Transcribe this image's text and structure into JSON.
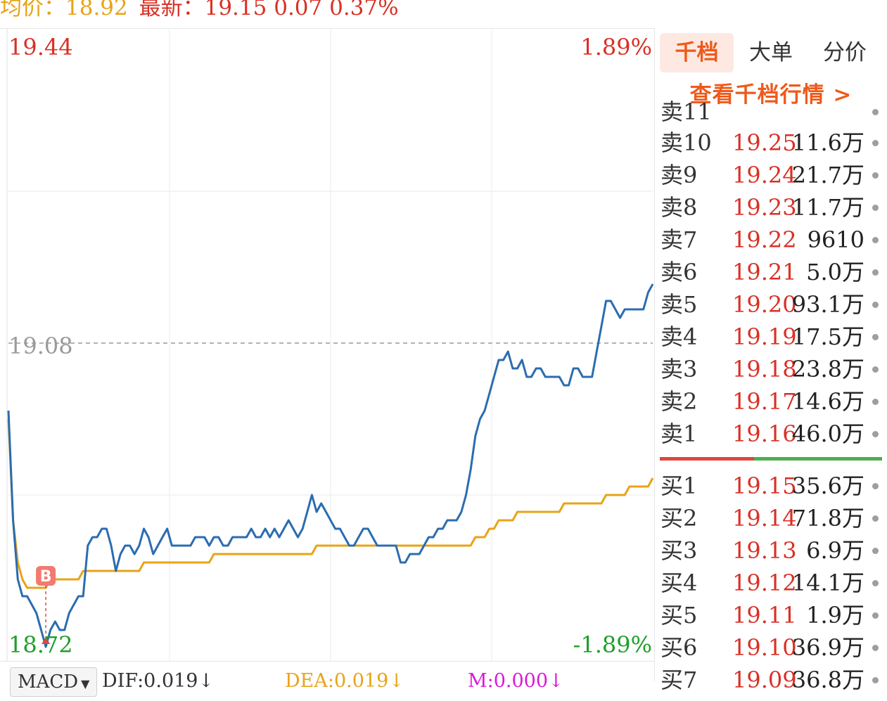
{
  "header": {
    "avg_label": "均价：",
    "avg_value": "18.92",
    "latest_label": "最新：",
    "latest_value": "19.15",
    "change": "0.07",
    "change_pct": "0.37%"
  },
  "chart": {
    "top_price": "19.44",
    "ref_price": "19.08",
    "bottom_price": "18.72",
    "top_pct": "1.89%",
    "bottom_pct": "-1.89%",
    "buy_marker": "B",
    "colors": {
      "price_line": "#2b6cb0",
      "avg_line": "#e8a317",
      "up": "#d93025",
      "down": "#1f9e2c"
    }
  },
  "chart_data": {
    "type": "line",
    "ylim": [
      18.72,
      19.44
    ],
    "reference": 19.08,
    "series": [
      {
        "name": "最新",
        "values": [
          19.0,
          18.87,
          18.8,
          18.78,
          18.78,
          18.77,
          18.76,
          18.74,
          18.72,
          18.74,
          18.75,
          18.74,
          18.74,
          18.76,
          18.77,
          18.78,
          18.78,
          18.84,
          18.85,
          18.85,
          18.86,
          18.86,
          18.84,
          18.81,
          18.83,
          18.84,
          18.84,
          18.83,
          18.84,
          18.86,
          18.85,
          18.83,
          18.84,
          18.85,
          18.86,
          18.84,
          18.84,
          18.84,
          18.84,
          18.84,
          18.85,
          18.85,
          18.85,
          18.84,
          18.85,
          18.85,
          18.84,
          18.84,
          18.85,
          18.85,
          18.85,
          18.85,
          18.86,
          18.85,
          18.85,
          18.86,
          18.85,
          18.86,
          18.85,
          18.86,
          18.87,
          18.86,
          18.85,
          18.86,
          18.88,
          18.9,
          18.88,
          18.89,
          18.88,
          18.87,
          18.86,
          18.86,
          18.85,
          18.84,
          18.84,
          18.85,
          18.86,
          18.86,
          18.85,
          18.84,
          18.84,
          18.84,
          18.84,
          18.84,
          18.82,
          18.82,
          18.83,
          18.83,
          18.83,
          18.84,
          18.85,
          18.85,
          18.86,
          18.86,
          18.87,
          18.87,
          18.87,
          18.88,
          18.9,
          18.93,
          18.97,
          18.99,
          19.0,
          19.02,
          19.04,
          19.06,
          19.06,
          19.07,
          19.05,
          19.05,
          19.06,
          19.04,
          19.04,
          19.05,
          19.05,
          19.04,
          19.04,
          19.04,
          19.04,
          19.03,
          19.03,
          19.05,
          19.05,
          19.04,
          19.04,
          19.04,
          19.07,
          19.1,
          19.13,
          19.13,
          19.12,
          19.11,
          19.12,
          19.12,
          19.12,
          19.12,
          19.12,
          19.14,
          19.15
        ]
      },
      {
        "name": "均价",
        "values": [
          18.99,
          18.87,
          18.82,
          18.8,
          18.79,
          18.79,
          18.79,
          18.79,
          18.79,
          18.8,
          18.8,
          18.8,
          18.8,
          18.8,
          18.8,
          18.8,
          18.81,
          18.81,
          18.81,
          18.81,
          18.81,
          18.81,
          18.81,
          18.81,
          18.81,
          18.81,
          18.81,
          18.81,
          18.81,
          18.82,
          18.82,
          18.82,
          18.82,
          18.82,
          18.82,
          18.82,
          18.82,
          18.82,
          18.82,
          18.82,
          18.82,
          18.82,
          18.82,
          18.82,
          18.83,
          18.83,
          18.83,
          18.83,
          18.83,
          18.83,
          18.83,
          18.83,
          18.83,
          18.83,
          18.83,
          18.83,
          18.83,
          18.83,
          18.83,
          18.83,
          18.83,
          18.83,
          18.83,
          18.83,
          18.83,
          18.83,
          18.84,
          18.84,
          18.84,
          18.84,
          18.84,
          18.84,
          18.84,
          18.84,
          18.84,
          18.84,
          18.84,
          18.84,
          18.84,
          18.84,
          18.84,
          18.84,
          18.84,
          18.84,
          18.84,
          18.84,
          18.84,
          18.84,
          18.84,
          18.84,
          18.84,
          18.84,
          18.84,
          18.84,
          18.84,
          18.84,
          18.84,
          18.84,
          18.84,
          18.84,
          18.85,
          18.85,
          18.85,
          18.86,
          18.86,
          18.87,
          18.87,
          18.87,
          18.87,
          18.88,
          18.88,
          18.88,
          18.88,
          18.88,
          18.88,
          18.88,
          18.88,
          18.88,
          18.88,
          18.89,
          18.89,
          18.89,
          18.89,
          18.89,
          18.89,
          18.89,
          18.89,
          18.89,
          18.9,
          18.9,
          18.9,
          18.9,
          18.9,
          18.91,
          18.91,
          18.91,
          18.91,
          18.91,
          18.92
        ]
      }
    ]
  },
  "macd": {
    "selector": "MACD",
    "dif": "DIF:0.019↓",
    "dea": "DEA:0.019↓",
    "m": "M:0.000↓"
  },
  "panel": {
    "tabs": [
      "千档",
      "大单",
      "分价"
    ],
    "link": "查看千档行情 >",
    "partial_top": "卖11",
    "asks": [
      {
        "label": "卖10",
        "price": "19.25",
        "vol": "11.6万"
      },
      {
        "label": "卖9",
        "price": "19.24",
        "vol": "21.7万"
      },
      {
        "label": "卖8",
        "price": "19.23",
        "vol": "11.7万"
      },
      {
        "label": "卖7",
        "price": "19.22",
        "vol": "9610"
      },
      {
        "label": "卖6",
        "price": "19.21",
        "vol": "5.0万"
      },
      {
        "label": "卖5",
        "price": "19.20",
        "vol": "93.1万"
      },
      {
        "label": "卖4",
        "price": "19.19",
        "vol": "17.5万"
      },
      {
        "label": "卖3",
        "price": "19.18",
        "vol": "23.8万"
      },
      {
        "label": "卖2",
        "price": "19.17",
        "vol": "14.6万"
      },
      {
        "label": "卖1",
        "price": "19.16",
        "vol": "46.0万"
      }
    ],
    "bids": [
      {
        "label": "买1",
        "price": "19.15",
        "vol": "35.6万"
      },
      {
        "label": "买2",
        "price": "19.14",
        "vol": "71.8万"
      },
      {
        "label": "买3",
        "price": "19.13",
        "vol": "6.9万"
      },
      {
        "label": "买4",
        "price": "19.12",
        "vol": "14.1万"
      },
      {
        "label": "买5",
        "price": "19.11",
        "vol": "1.9万"
      },
      {
        "label": "买6",
        "price": "19.10",
        "vol": "36.9万"
      },
      {
        "label": "买7",
        "price": "19.09",
        "vol": "36.8万"
      }
    ]
  }
}
